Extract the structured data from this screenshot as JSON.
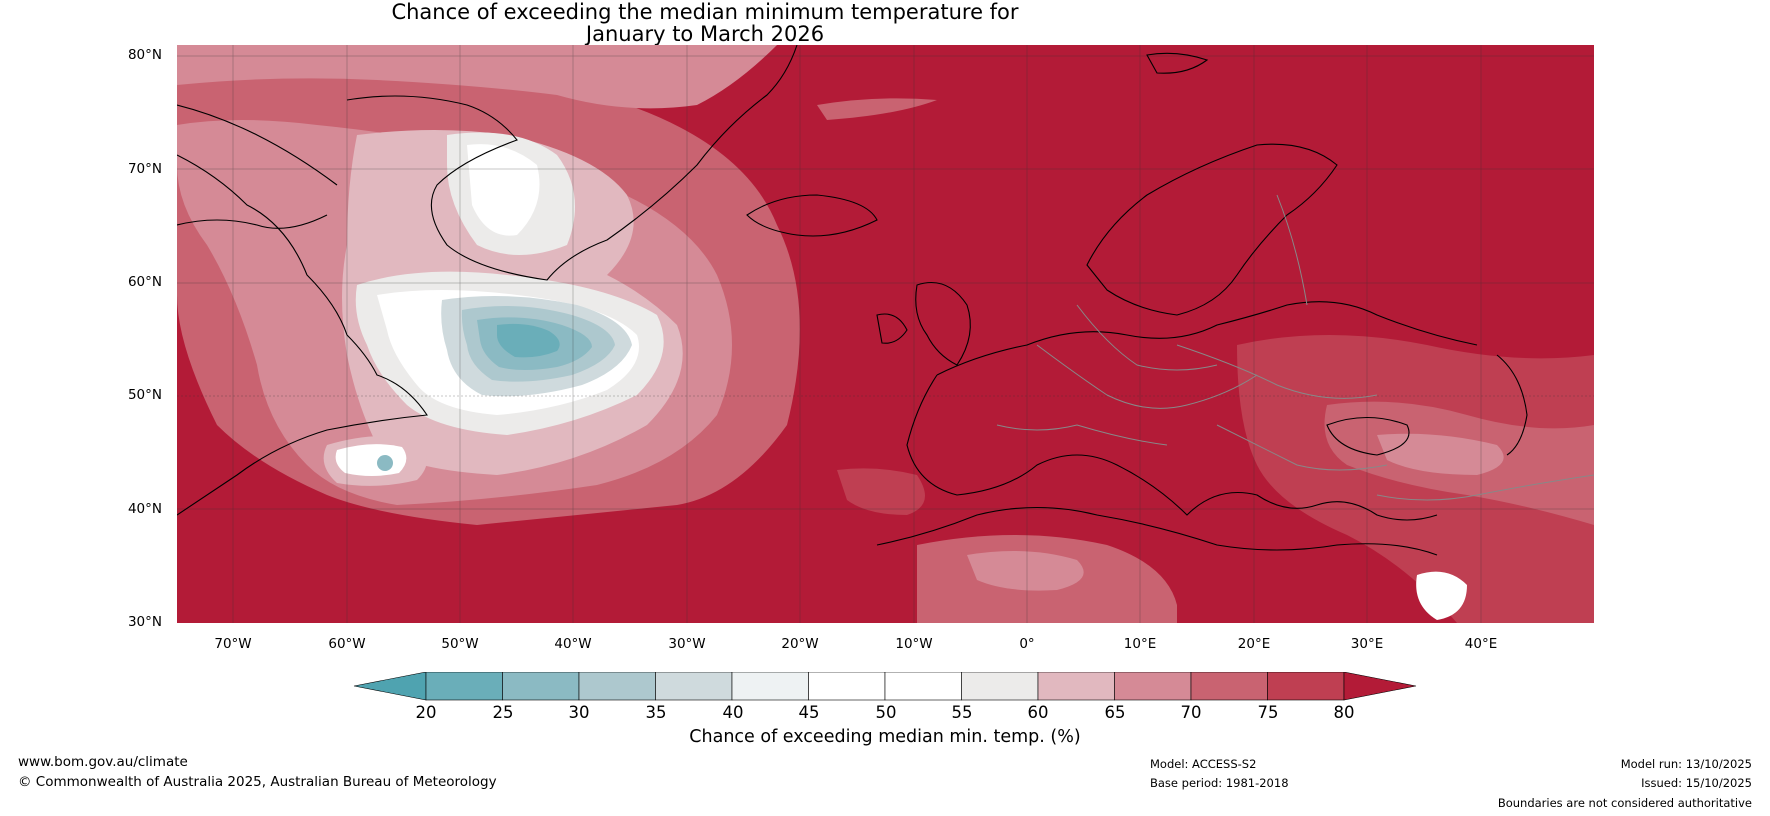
{
  "title_line1": "Chance of exceeding the median minimum temperature for",
  "title_line2": "January to March 2026",
  "lat_labels": [
    "80°N",
    "70°N",
    "60°N",
    "50°N",
    "40°N",
    "30°N"
  ],
  "lon_labels": [
    "70°W",
    "60°W",
    "50°W",
    "40°W",
    "30°W",
    "20°W",
    "10°W",
    "0°",
    "10°E",
    "20°E",
    "30°E",
    "40°E"
  ],
  "colorbar": {
    "label": "Chance of exceeding median min. temp. (%)",
    "ticks": [
      "20",
      "25",
      "30",
      "35",
      "40",
      "45",
      "50",
      "55",
      "60",
      "65",
      "70",
      "75",
      "80"
    ],
    "colors": [
      "#4fa3b0",
      "#6aaeb9",
      "#8bbac3",
      "#adc8ce",
      "#cfdadd",
      "#eef2f3",
      "#ffffff",
      "#ffffff",
      "#ecebea",
      "#e1b8bf",
      "#d58a96",
      "#c96371",
      "#bf3f52",
      "#b31b37"
    ]
  },
  "footer": {
    "website": "www.bom.gov.au/climate",
    "copyright": "© Commonwealth of Australia 2025, Australian Bureau of Meteorology",
    "model": "Model: ACCESS-S2",
    "base_period": "Base period: 1981-2018",
    "model_run": "Model run: 13/10/2025",
    "issued": "Issued: 15/10/2025",
    "disclaimer": "Boundaries are not considered authoritative"
  }
}
